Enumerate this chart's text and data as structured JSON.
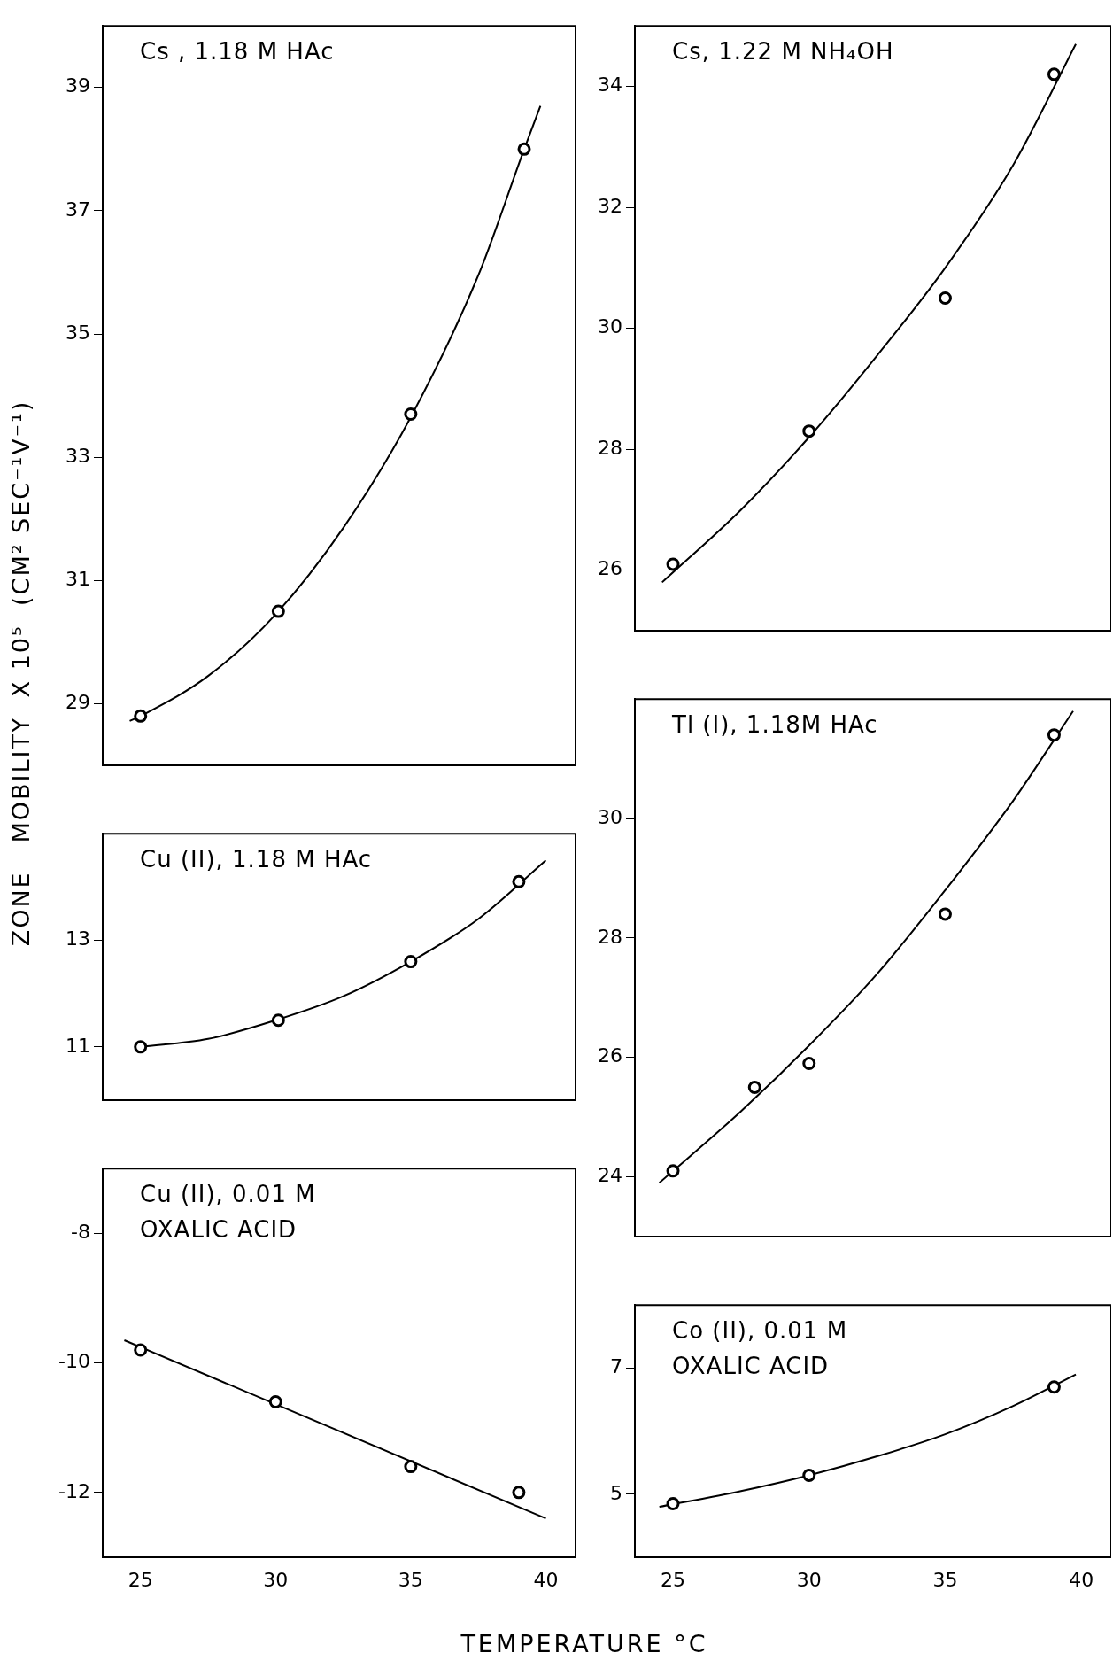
{
  "chart_data": [
    {
      "type": "scatter",
      "title": "Cs , 1.18 M HAc",
      "ylabel": "ZONE   MOBILITY  X 10⁵  (CM² SEC⁻¹V⁻¹)",
      "xlim": [
        23.6,
        41.1
      ],
      "ylim": [
        28,
        40
      ],
      "yticks": [
        29,
        31,
        33,
        35,
        37,
        39
      ],
      "tick_labels": "y",
      "marker": "circle",
      "series": [
        {
          "type": "scatter",
          "color": "#000000",
          "x": [
            25,
            30.1,
            35,
            39.2
          ],
          "values": [
            28.8,
            30.5,
            33.7,
            38.0
          ]
        },
        {
          "type": "line",
          "marker": "none",
          "color": "#000000",
          "x": [
            24.6,
            25,
            27.5,
            30,
            32.5,
            35,
            37.5,
            39.2,
            39.8
          ],
          "values": [
            28.72,
            28.8,
            29.45,
            30.45,
            31.85,
            33.65,
            35.95,
            38.0,
            38.7
          ]
        }
      ]
    },
    {
      "type": "scatter",
      "title": "Cu (II), 1.18 M HAc",
      "xlim": [
        23.6,
        41.1
      ],
      "ylim": [
        10,
        15
      ],
      "yticks": [
        11,
        13
      ],
      "tick_labels": "y",
      "marker": "circle",
      "series": [
        {
          "type": "scatter",
          "color": "#000000",
          "x": [
            25,
            30.1,
            35,
            39
          ],
          "values": [
            11.0,
            11.5,
            12.6,
            14.1
          ]
        },
        {
          "type": "line",
          "marker": "none",
          "color": "#000000",
          "x": [
            25,
            27.5,
            30,
            32.5,
            35,
            37.5,
            40
          ],
          "values": [
            11.0,
            11.15,
            11.5,
            11.95,
            12.6,
            13.4,
            14.5
          ]
        }
      ]
    },
    {
      "type": "scatter",
      "title": "Cu (II), 0.01 M OXALIC ACID",
      "xlabel": "TEMPERATURE °C",
      "xlim": [
        23.6,
        41.1
      ],
      "ylim": [
        -13,
        -7
      ],
      "xticks": [
        25,
        30,
        35,
        40
      ],
      "yticks": [
        -8,
        -10,
        -12
      ],
      "marker": "circle",
      "series": [
        {
          "type": "scatter",
          "color": "#000000",
          "x": [
            25,
            30,
            35,
            39
          ],
          "values": [
            -9.8,
            -10.6,
            -11.6,
            -12.0
          ]
        },
        {
          "type": "line",
          "marker": "none",
          "color": "#000000",
          "x": [
            24.4,
            40
          ],
          "values": [
            -9.65,
            -12.4
          ]
        }
      ]
    },
    {
      "type": "scatter",
      "title": "Cs, 1.22 M NH₄OH",
      "xlim": [
        23.6,
        41.1
      ],
      "ylim": [
        25,
        35
      ],
      "yticks": [
        26,
        28,
        30,
        32,
        34
      ],
      "tick_labels": "y",
      "marker": "circle",
      "series": [
        {
          "type": "scatter",
          "color": "#000000",
          "x": [
            25,
            30,
            35,
            39
          ],
          "values": [
            26.1,
            28.3,
            30.5,
            34.2
          ]
        },
        {
          "type": "line",
          "marker": "none",
          "color": "#000000",
          "x": [
            24.6,
            27.5,
            30,
            32.5,
            35,
            37.5,
            39.8
          ],
          "values": [
            25.8,
            27.0,
            28.2,
            29.55,
            31.0,
            32.7,
            34.7
          ]
        }
      ]
    },
    {
      "type": "scatter",
      "title": "Tl (I), 1.18M HAc",
      "xlim": [
        23.6,
        41.1
      ],
      "ylim": [
        23,
        32
      ],
      "yticks": [
        24,
        26,
        28,
        30
      ],
      "tick_labels": "y",
      "marker": "circle",
      "series": [
        {
          "type": "scatter",
          "color": "#000000",
          "x": [
            25,
            28,
            30,
            35,
            39
          ],
          "values": [
            24.1,
            25.5,
            25.9,
            28.4,
            31.4
          ]
        },
        {
          "type": "line",
          "marker": "none",
          "color": "#000000",
          "x": [
            24.5,
            27.5,
            30,
            32.5,
            35,
            37.5,
            39.7
          ],
          "values": [
            23.9,
            25.1,
            26.2,
            27.4,
            28.8,
            30.3,
            31.8
          ]
        }
      ]
    },
    {
      "type": "scatter",
      "title": "Co (II), 0.01 M OXALIC ACID",
      "xlim": [
        23.6,
        41.1
      ],
      "ylim": [
        4,
        8
      ],
      "xticks": [
        25,
        30,
        35,
        40
      ],
      "yticks": [
        5,
        7
      ],
      "marker": "circle",
      "series": [
        {
          "type": "scatter",
          "color": "#000000",
          "x": [
            25,
            30,
            39
          ],
          "values": [
            4.85,
            5.3,
            6.7
          ]
        },
        {
          "type": "line",
          "marker": "none",
          "color": "#000000",
          "x": [
            24.5,
            27.5,
            30,
            32.5,
            35,
            37.5,
            39.8
          ],
          "values": [
            4.8,
            5.05,
            5.3,
            5.6,
            5.95,
            6.4,
            6.9
          ]
        }
      ]
    }
  ]
}
